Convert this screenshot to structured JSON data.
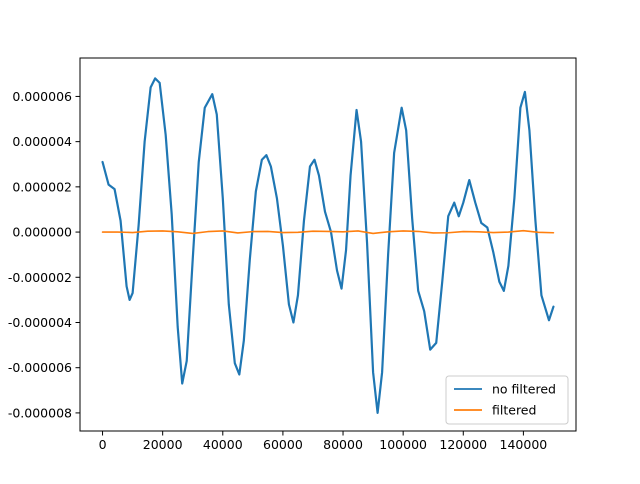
{
  "chart_data": {
    "type": "line",
    "title": "",
    "xlabel": "",
    "ylabel": "",
    "xlim": [
      -7500,
      157500
    ],
    "ylim": [
      -8.8e-06,
      7.7e-06
    ],
    "xticks": [
      0,
      20000,
      40000,
      60000,
      80000,
      100000,
      120000,
      140000
    ],
    "xtick_labels": [
      "0",
      "20000",
      "40000",
      "60000",
      "80000",
      "100000",
      "120000",
      "140000"
    ],
    "yticks": [
      -8e-06,
      -6e-06,
      -4e-06,
      -2e-06,
      0,
      2e-06,
      4e-06,
      6e-06
    ],
    "ytick_labels": [
      "-0.000008",
      "-0.000006",
      "-0.000004",
      "-0.000002",
      "0.000000",
      "0.000002",
      "0.000004",
      "0.000006"
    ],
    "grid": false,
    "legend_position": "bottom-right",
    "series": [
      {
        "name": "no filtered",
        "color": "#1f77b4",
        "x": [
          0,
          2000,
          4000,
          6000,
          8000,
          9000,
          10000,
          12000,
          14000,
          16000,
          17500,
          19000,
          21000,
          23000,
          25000,
          26500,
          28000,
          30000,
          32000,
          34000,
          36500,
          38000,
          40000,
          42000,
          44000,
          45500,
          47000,
          49000,
          51000,
          53000,
          54500,
          56000,
          58000,
          60000,
          62000,
          63500,
          65000,
          67000,
          69000,
          70500,
          72000,
          74000,
          76000,
          78000,
          79500,
          81000,
          82500,
          84500,
          86000,
          88000,
          90000,
          91500,
          93000,
          95000,
          97000,
          99500,
          101000,
          103000,
          105000,
          107000,
          109000,
          111000,
          113000,
          115000,
          117000,
          118500,
          120000,
          122000,
          124000,
          126000,
          128000,
          130000,
          132000,
          133500,
          135000,
          137000,
          139000,
          140500,
          142000,
          144000,
          146000,
          148500,
          150000
        ],
        "values": [
          3.1e-06,
          2.1e-06,
          1.9e-06,
          5e-07,
          -2.4e-06,
          -3e-06,
          -2.7e-06,
          3e-07,
          4e-06,
          6.4e-06,
          6.8e-06,
          6.6e-06,
          4.3e-06,
          8e-07,
          -4.2e-06,
          -6.7e-06,
          -5.7e-06,
          -1.2e-06,
          3.1e-06,
          5.5e-06,
          6.1e-06,
          5.2e-06,
          1.5e-06,
          -3.2e-06,
          -5.8e-06,
          -6.3e-06,
          -4.8e-06,
          -1.2e-06,
          1.8e-06,
          3.2e-06,
          3.4e-06,
          2.9e-06,
          1.5e-06,
          -6e-07,
          -3.2e-06,
          -4e-06,
          -2.8e-06,
          5e-07,
          2.9e-06,
          3.2e-06,
          2.5e-06,
          9e-07,
          0,
          -1.7e-06,
          -2.5e-06,
          -8e-07,
          2.5e-06,
          5.4e-06,
          4e-06,
          -5e-07,
          -6.2e-06,
          -8e-06,
          -6.2e-06,
          -1e-06,
          3.5e-06,
          5.5e-06,
          4.5e-06,
          6e-07,
          -2.6e-06,
          -3.5e-06,
          -5.2e-06,
          -4.9e-06,
          -2.2e-06,
          7e-07,
          1.3e-06,
          7e-07,
          1.3e-06,
          2.3e-06,
          1.3e-06,
          4e-07,
          2e-07,
          -9e-07,
          -2.2e-06,
          -2.6e-06,
          -1.5e-06,
          1.5e-06,
          5.5e-06,
          6.2e-06,
          4.5e-06,
          5e-07,
          -2.8e-06,
          -3.9e-06,
          -3.3e-06
        ]
      },
      {
        "name": "filtered",
        "color": "#ff7f0e",
        "x": [
          0,
          5000,
          10000,
          15000,
          20000,
          25000,
          30000,
          35000,
          40000,
          45000,
          50000,
          55000,
          60000,
          65000,
          70000,
          75000,
          80000,
          85000,
          90000,
          95000,
          100000,
          105000,
          110000,
          115000,
          120000,
          125000,
          130000,
          135000,
          140000,
          145000,
          150000
        ],
        "values": [
          0,
          0,
          -2e-08,
          4e-08,
          5e-08,
          1e-08,
          -6e-08,
          2e-08,
          5e-08,
          -4e-08,
          2e-08,
          3e-08,
          -2e-08,
          -1e-08,
          4e-08,
          3e-08,
          1e-08,
          5e-08,
          -6e-08,
          1e-08,
          5e-08,
          3e-08,
          -4e-08,
          -3e-08,
          2e-08,
          1e-08,
          -2e-08,
          0,
          6e-08,
          -1e-08,
          -3e-08
        ]
      }
    ]
  }
}
